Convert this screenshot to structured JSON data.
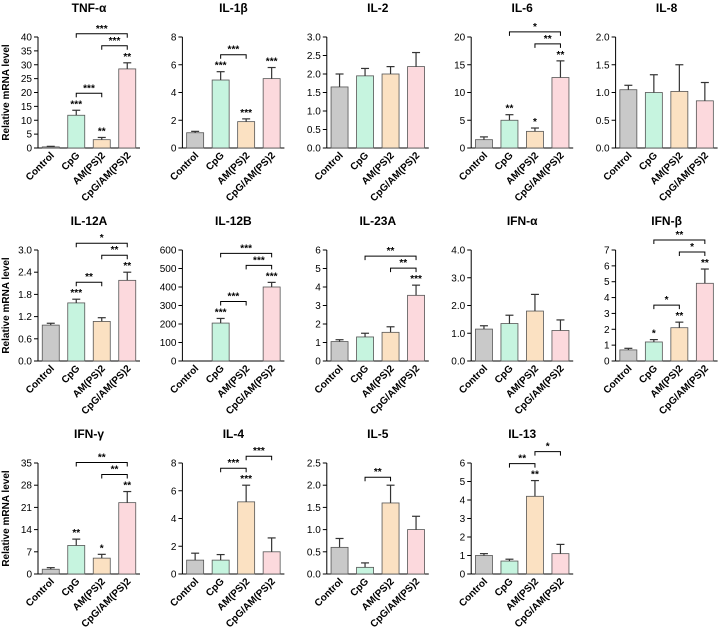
{
  "chart_data": [
    {
      "type": "bar",
      "title": "TNF-α",
      "y_label": "Relative mRNA level",
      "categories": [
        "Control",
        "CpG",
        "AM(PS)2",
        "CpG/AM(PS)2"
      ],
      "colors": [
        "#c9c9c9",
        "#c6f4df",
        "#fbe1c2",
        "#fcd9dd"
      ],
      "values": [
        0.4,
        11.8,
        3.0,
        28.5
      ],
      "errors": [
        0.2,
        1.8,
        0.8,
        2.2
      ],
      "ylim": [
        0,
        40
      ],
      "yticks": [
        0,
        5,
        10,
        15,
        20,
        25,
        30,
        35,
        40
      ],
      "annotations": [
        null,
        "***",
        "**",
        "**"
      ],
      "brackets": [
        {
          "between": [
            "CpG",
            "AM(PS)2"
          ],
          "label": "***"
        },
        {
          "between": [
            "AM(PS)2",
            "CpG/AM(PS)2"
          ],
          "label": "***"
        },
        {
          "between": [
            "CpG",
            "CpG/AM(PS)2"
          ],
          "label": "***"
        }
      ]
    },
    {
      "type": "bar",
      "title": "IL-1β",
      "categories": [
        "Control",
        "CpG",
        "AM(PS)2",
        "CpG/AM(PS)2"
      ],
      "colors": [
        "#c9c9c9",
        "#c6f4df",
        "#fbe1c2",
        "#fcd9dd"
      ],
      "values": [
        1.1,
        4.9,
        1.9,
        5.0
      ],
      "errors": [
        0.1,
        0.6,
        0.2,
        0.8
      ],
      "ylim": [
        0,
        8
      ],
      "yticks": [
        0,
        2,
        4,
        6,
        8
      ],
      "annotations": [
        null,
        "***",
        "***",
        "***"
      ],
      "brackets": [
        {
          "between": [
            "CpG",
            "AM(PS)2"
          ],
          "label": "***"
        }
      ]
    },
    {
      "type": "bar",
      "title": "IL-2",
      "categories": [
        "Control",
        "CpG",
        "AM(PS)2",
        "CpG/AM(PS)2"
      ],
      "colors": [
        "#c9c9c9",
        "#c6f4df",
        "#fbe1c2",
        "#fcd9dd"
      ],
      "values": [
        1.65,
        1.95,
        2.0,
        2.2
      ],
      "errors": [
        0.35,
        0.2,
        0.2,
        0.38
      ],
      "ylim": [
        0,
        3
      ],
      "yticks": [
        {
          "value": 0,
          "label": "0.0"
        },
        0.5,
        {
          "value": 1,
          "label": "1.0"
        },
        1.5,
        {
          "value": 2,
          "label": "2.0"
        },
        2.5,
        {
          "value": 3,
          "label": "3.0"
        }
      ],
      "annotations": [
        null,
        null,
        null,
        null
      ],
      "brackets": []
    },
    {
      "type": "bar",
      "title": "IL-6",
      "categories": [
        "Control",
        "CpG",
        "AM(PS)2",
        "CpG/AM(PS)2"
      ],
      "colors": [
        "#c9c9c9",
        "#c6f4df",
        "#fbe1c2",
        "#fcd9dd"
      ],
      "values": [
        1.5,
        5.0,
        3.0,
        12.7
      ],
      "errors": [
        0.5,
        1.0,
        0.6,
        3.0
      ],
      "ylim": [
        0,
        20
      ],
      "yticks": [
        0,
        5,
        10,
        15,
        20
      ],
      "annotations": [
        null,
        "**",
        "*",
        "**"
      ],
      "brackets": [
        {
          "between": [
            "AM(PS)2",
            "CpG/AM(PS)2"
          ],
          "label": "**"
        },
        {
          "between": [
            "CpG",
            "CpG/AM(PS)2"
          ],
          "label": "*"
        }
      ]
    },
    {
      "type": "bar",
      "title": "IL-8",
      "categories": [
        "Control",
        "CpG",
        "AM(PS)2",
        "CpG/AM(PS)2"
      ],
      "colors": [
        "#c9c9c9",
        "#c6f4df",
        "#fbe1c2",
        "#fcd9dd"
      ],
      "values": [
        1.05,
        1.0,
        1.02,
        0.85
      ],
      "errors": [
        0.08,
        0.32,
        0.48,
        0.33
      ],
      "ylim": [
        0,
        2
      ],
      "yticks": [
        {
          "value": 0,
          "label": "0.0"
        },
        0.5,
        {
          "value": 1,
          "label": "1.0"
        },
        1.5,
        {
          "value": 2,
          "label": "2.0"
        }
      ],
      "annotations": [
        null,
        null,
        null,
        null
      ],
      "brackets": []
    },
    {
      "type": "bar",
      "title": "IL-12A",
      "y_label": "Relative mRNA level",
      "categories": [
        "Control",
        "CpG",
        "AM(PS)2",
        "CpG/AM(PS)2"
      ],
      "colors": [
        "#c9c9c9",
        "#c6f4df",
        "#fbe1c2",
        "#fcd9dd"
      ],
      "values": [
        0.97,
        1.57,
        1.07,
        2.18
      ],
      "errors": [
        0.05,
        0.1,
        0.1,
        0.22
      ],
      "ylim": [
        0,
        3
      ],
      "yticks": [
        {
          "value": 0,
          "label": "0.0"
        },
        0.6,
        1.2,
        1.8,
        2.4,
        {
          "value": 3,
          "label": "3.0"
        }
      ],
      "annotations": [
        null,
        "***",
        null,
        "**"
      ],
      "brackets": [
        {
          "between": [
            "CpG",
            "AM(PS)2"
          ],
          "label": "**"
        },
        {
          "between": [
            "AM(PS)2",
            "CpG/AM(PS)2"
          ],
          "label": "**"
        },
        {
          "between": [
            "CpG",
            "CpG/AM(PS)2"
          ],
          "label": "*"
        }
      ]
    },
    {
      "type": "bar",
      "title": "IL-12B",
      "categories": [
        "Control",
        "CpG",
        "AM(PS)2",
        "CpG/AM(PS)2"
      ],
      "colors": [
        "#c9c9c9",
        "#c6f4df",
        "#fbe1c2",
        "#fcd9dd"
      ],
      "values": [
        0,
        205,
        0,
        400
      ],
      "errors": [
        0,
        25,
        0,
        25
      ],
      "ylim": [
        0,
        600
      ],
      "yticks": [
        0,
        100,
        200,
        300,
        400,
        500,
        600
      ],
      "annotations": [
        null,
        "***",
        null,
        "***"
      ],
      "brackets": [
        {
          "between": [
            "CpG",
            "AM(PS)2"
          ],
          "label": "***"
        },
        {
          "between": [
            "AM(PS)2",
            "CpG/AM(PS)2"
          ],
          "label": "***"
        },
        {
          "between": [
            "CpG",
            "CpG/AM(PS)2"
          ],
          "label": "***"
        }
      ]
    },
    {
      "type": "bar",
      "title": "IL-23A",
      "categories": [
        "Control",
        "CpG",
        "AM(PS)2",
        "CpG/AM(PS)2"
      ],
      "colors": [
        "#c9c9c9",
        "#c6f4df",
        "#fbe1c2",
        "#fcd9dd"
      ],
      "values": [
        1.05,
        1.3,
        1.55,
        3.55
      ],
      "errors": [
        0.1,
        0.2,
        0.3,
        0.55
      ],
      "ylim": [
        0,
        6
      ],
      "yticks": [
        0,
        1,
        2,
        3,
        4,
        5,
        6
      ],
      "annotations": [
        null,
        null,
        null,
        "***"
      ],
      "brackets": [
        {
          "between": [
            "AM(PS)2",
            "CpG/AM(PS)2"
          ],
          "label": "**"
        },
        {
          "between": [
            "CpG",
            "CpG/AM(PS)2"
          ],
          "label": "**"
        }
      ]
    },
    {
      "type": "bar",
      "title": "IFN-α",
      "categories": [
        "Control",
        "CpG",
        "AM(PS)2",
        "CpG/AM(PS)2"
      ],
      "colors": [
        "#c9c9c9",
        "#c6f4df",
        "#fbe1c2",
        "#fcd9dd"
      ],
      "values": [
        1.15,
        1.35,
        1.8,
        1.1
      ],
      "errors": [
        0.12,
        0.3,
        0.6,
        0.38
      ],
      "ylim": [
        0,
        4
      ],
      "yticks": [
        {
          "value": 0,
          "label": "0.0"
        },
        {
          "value": 1,
          "label": "1.0"
        },
        {
          "value": 2,
          "label": "2.0"
        },
        {
          "value": 3,
          "label": "3.0"
        },
        {
          "value": 4,
          "label": "4.0"
        }
      ],
      "annotations": [
        null,
        null,
        null,
        null
      ],
      "brackets": []
    },
    {
      "type": "bar",
      "title": "IFN-β",
      "categories": [
        "Control",
        "CpG",
        "AM(PS)2",
        "CpG/AM(PS)2"
      ],
      "colors": [
        "#c9c9c9",
        "#c6f4df",
        "#fbe1c2",
        "#fcd9dd"
      ],
      "values": [
        0.7,
        1.2,
        2.1,
        4.9
      ],
      "errors": [
        0.1,
        0.15,
        0.35,
        0.9
      ],
      "ylim": [
        0,
        7
      ],
      "yticks": [
        0,
        1,
        2,
        3,
        4,
        5,
        6,
        7
      ],
      "annotations": [
        null,
        "*",
        "**",
        "**"
      ],
      "brackets": [
        {
          "between": [
            "CpG",
            "AM(PS)2"
          ],
          "label": "*"
        },
        {
          "between": [
            "AM(PS)2",
            "CpG/AM(PS)2"
          ],
          "label": "*"
        },
        {
          "between": [
            "CpG",
            "CpG/AM(PS)2"
          ],
          "label": "**"
        }
      ]
    },
    {
      "type": "bar",
      "title": "IFN-γ",
      "y_label": "Relative mRNA level",
      "categories": [
        "Control",
        "CpG",
        "AM(PS)2",
        "CpG/AM(PS)2"
      ],
      "colors": [
        "#c9c9c9",
        "#c6f4df",
        "#fbe1c2",
        "#fcd9dd"
      ],
      "values": [
        1.5,
        9,
        5,
        22.5
      ],
      "errors": [
        0.5,
        2,
        1.2,
        3.5
      ],
      "ylim": [
        0,
        35
      ],
      "yticks": [
        0,
        7,
        14,
        21,
        28,
        35
      ],
      "annotations": [
        null,
        "**",
        "*",
        "**"
      ],
      "brackets": [
        {
          "between": [
            "AM(PS)2",
            "CpG/AM(PS)2"
          ],
          "label": "**"
        },
        {
          "between": [
            "CpG",
            "CpG/AM(PS)2"
          ],
          "label": "**"
        }
      ]
    },
    {
      "type": "bar",
      "title": "IL-4",
      "categories": [
        "Control",
        "CpG",
        "AM(PS)2",
        "CpG/AM(PS)2"
      ],
      "colors": [
        "#c9c9c9",
        "#c6f4df",
        "#fbe1c2",
        "#fcd9dd"
      ],
      "values": [
        1.0,
        1.0,
        5.2,
        1.6
      ],
      "errors": [
        0.5,
        0.4,
        1.2,
        1.0
      ],
      "ylim": [
        0,
        8
      ],
      "yticks": [
        0,
        2,
        4,
        6,
        8
      ],
      "annotations": [
        null,
        null,
        "***",
        null
      ],
      "brackets": [
        {
          "between": [
            "CpG",
            "AM(PS)2"
          ],
          "label": "***"
        },
        {
          "between": [
            "AM(PS)2",
            "CpG/AM(PS)2"
          ],
          "label": "***"
        }
      ]
    },
    {
      "type": "bar",
      "title": "IL-5",
      "categories": [
        "Control",
        "CpG",
        "AM(PS)2",
        "CpG/AM(PS)2"
      ],
      "colors": [
        "#c9c9c9",
        "#c6f4df",
        "#fbe1c2",
        "#fcd9dd"
      ],
      "values": [
        0.6,
        0.15,
        1.6,
        1.0
      ],
      "errors": [
        0.2,
        0.1,
        0.4,
        0.3
      ],
      "ylim": [
        0,
        2.5
      ],
      "yticks": [
        {
          "value": 0,
          "label": "0.0"
        },
        0.5,
        {
          "value": 1,
          "label": "1.0"
        },
        1.5,
        {
          "value": 2,
          "label": "2.0"
        },
        2.5
      ],
      "annotations": [
        null,
        null,
        null,
        null
      ],
      "brackets": [
        {
          "between": [
            "CpG",
            "AM(PS)2"
          ],
          "label": "**"
        }
      ]
    },
    {
      "type": "bar",
      "title": "IL-13",
      "categories": [
        "Control",
        "CpG",
        "AM(PS)2",
        "CpG/AM(PS)2"
      ],
      "colors": [
        "#c9c9c9",
        "#c6f4df",
        "#fbe1c2",
        "#fcd9dd"
      ],
      "values": [
        1.0,
        0.7,
        4.2,
        1.1
      ],
      "errors": [
        0.1,
        0.1,
        0.85,
        0.5
      ],
      "ylim": [
        0,
        6
      ],
      "yticks": [
        0,
        1,
        2,
        3,
        4,
        5,
        6
      ],
      "annotations": [
        null,
        null,
        "**",
        null
      ],
      "brackets": [
        {
          "between": [
            "CpG",
            "AM(PS)2"
          ],
          "label": "**"
        },
        {
          "between": [
            "AM(PS)2",
            "CpG/AM(PS)2"
          ],
          "label": "*"
        }
      ]
    }
  ]
}
